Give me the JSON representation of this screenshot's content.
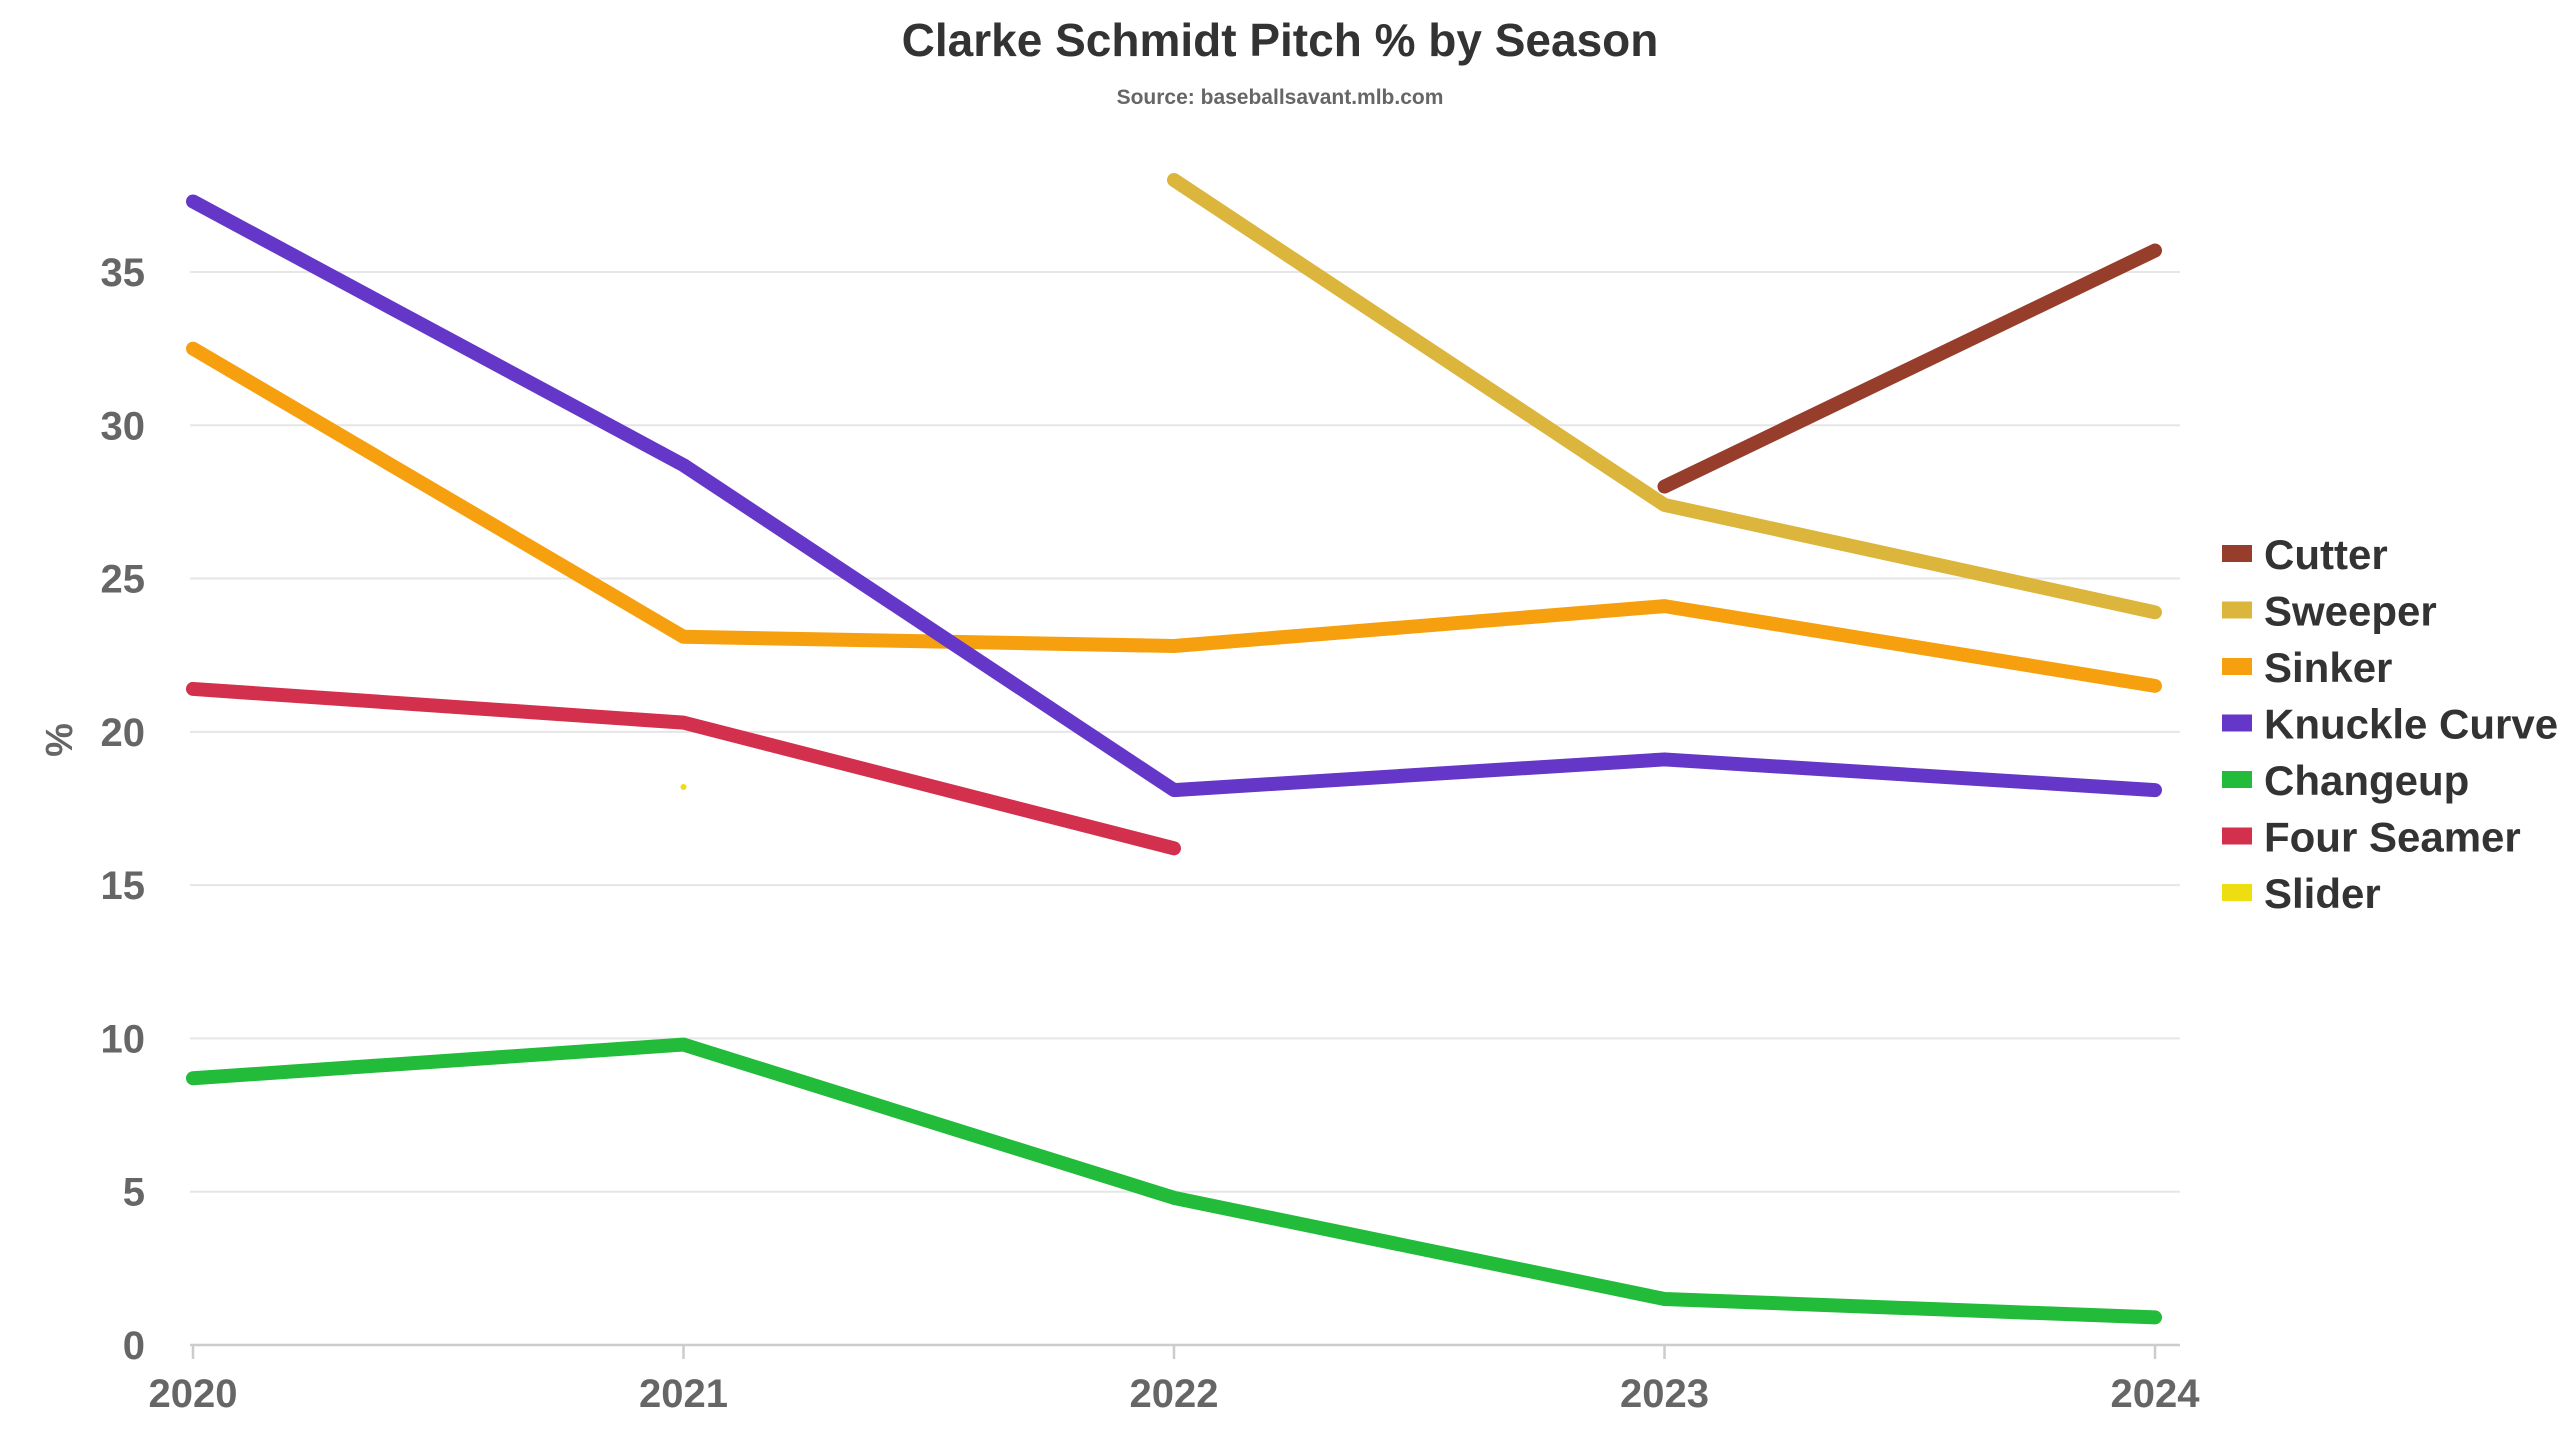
{
  "chart_data": {
    "type": "line",
    "title": "Clarke Schmidt Pitch % by Season",
    "subtitle": "Source: baseballsavant.mlb.com",
    "xlabel": "",
    "ylabel": "%",
    "x": [
      "2020",
      "2021",
      "2022",
      "2023",
      "2024"
    ],
    "ylim": [
      0,
      38
    ],
    "yticks": [
      0,
      5,
      10,
      15,
      20,
      25,
      30,
      35
    ],
    "grid": true,
    "legend_position": "right",
    "series": [
      {
        "name": "Cutter",
        "color": "#963d2c",
        "values": [
          null,
          null,
          null,
          28.0,
          35.7
        ]
      },
      {
        "name": "Sweeper",
        "color": "#dbb53c",
        "values": [
          null,
          null,
          38.0,
          27.4,
          23.9
        ]
      },
      {
        "name": "Sinker",
        "color": "#f7a00f",
        "values": [
          32.5,
          23.1,
          22.8,
          24.1,
          21.5
        ]
      },
      {
        "name": "Knuckle Curve",
        "color": "#6437c8",
        "values": [
          37.3,
          28.7,
          18.1,
          19.1,
          18.1
        ]
      },
      {
        "name": "Changeup",
        "color": "#22bb3a",
        "values": [
          8.7,
          9.8,
          4.8,
          1.5,
          0.9
        ]
      },
      {
        "name": "Four Seamer",
        "color": "#d2304c",
        "values": [
          21.4,
          20.3,
          16.2,
          null,
          null
        ]
      },
      {
        "name": "Slider",
        "color": "#eedd11",
        "values": [
          null,
          18.2,
          null,
          null,
          null
        ]
      }
    ]
  }
}
